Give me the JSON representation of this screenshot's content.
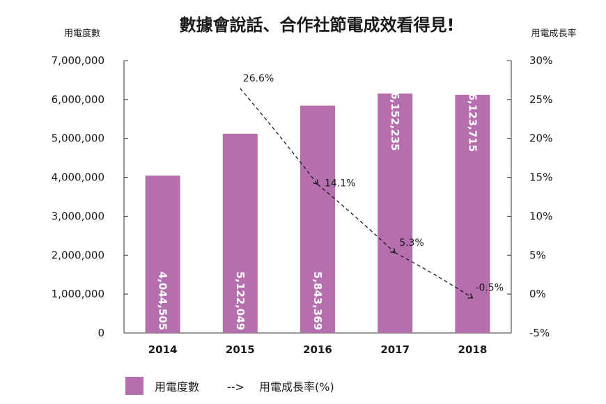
{
  "chart_data": {
    "type": "bar",
    "title": "數據會說話、合作社節電成效看得見!",
    "ylabel": "用電度數",
    "y2label": "用電成長率",
    "categories": [
      "2014",
      "2015",
      "2016",
      "2017",
      "2018"
    ],
    "ylim": [
      0,
      7000000
    ],
    "y_ticks": [
      "0",
      "1,000,000",
      "2,000,000",
      "3,000,000",
      "4,000,000",
      "5,000,000",
      "6,000,000",
      "7,000,000"
    ],
    "y2lim": [
      -5,
      30
    ],
    "y2_ticks": [
      "-5%",
      "0%",
      "5%",
      "10%",
      "15%",
      "20%",
      "25%",
      "30%"
    ],
    "bar_color": "#b56fae",
    "series": [
      {
        "name": "用電度數",
        "type": "bar",
        "values": [
          4044505,
          5122049,
          5843369,
          6152235,
          6123715
        ],
        "labels": [
          "4,044,505",
          "5,122,049",
          "5,843,369",
          "6,152,235",
          "6,123,715"
        ]
      },
      {
        "name": "用電成長率(%)",
        "type": "line",
        "style": "dashed-arrow",
        "x": [
          "2015",
          "2016",
          "2017",
          "2018"
        ],
        "values": [
          26.6,
          14.1,
          5.3,
          -0.5
        ],
        "labels": [
          "26.6%",
          "14.1%",
          "5.3%",
          "-0.5%"
        ]
      }
    ],
    "legend": {
      "position": "bottom-left",
      "bar_entry": "用電度數",
      "line_entry": "用電成長率(%)",
      "line_symbol": "-->"
    },
    "grid": false
  }
}
